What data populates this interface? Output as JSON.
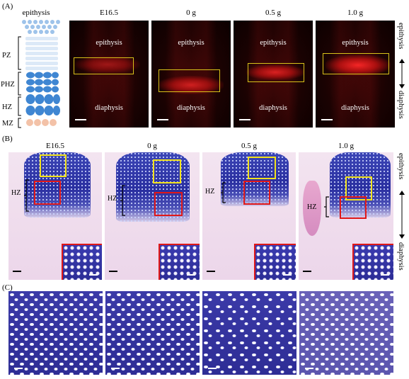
{
  "panelA": {
    "label": "(A)",
    "schematic_title": "epithysis",
    "zones": [
      "PZ",
      "PHZ",
      "HZ",
      "MZ"
    ],
    "columns": [
      {
        "title": "E16.5",
        "top": "epithysis",
        "bottom": "diaphysis"
      },
      {
        "title": "0 g",
        "top": "epithysis",
        "bottom": "diaphysis"
      },
      {
        "title": "0.5 g",
        "top": "epithysis",
        "bottom": "diaphysis"
      },
      {
        "title": "1.0 g",
        "top": "epithysis",
        "bottom": "diaphysis"
      }
    ],
    "side_top": "epithysis",
    "side_bottom": "diaphysis"
  },
  "panelB": {
    "label": "(B)",
    "columns": [
      {
        "title": "E16.5",
        "zone": "HZ"
      },
      {
        "title": "0 g",
        "zone": "HZ"
      },
      {
        "title": "0.5 g",
        "zone": "HZ"
      },
      {
        "title": "1.0 g",
        "zone": "HZ"
      }
    ],
    "side_top": "epithysis",
    "side_bottom": "diaphysis"
  },
  "panelC": {
    "label": "(C)"
  },
  "colors": {
    "box_yellow": "#d8c21a",
    "box_red": "#e01818",
    "stain_blue": "#2e2d95"
  }
}
